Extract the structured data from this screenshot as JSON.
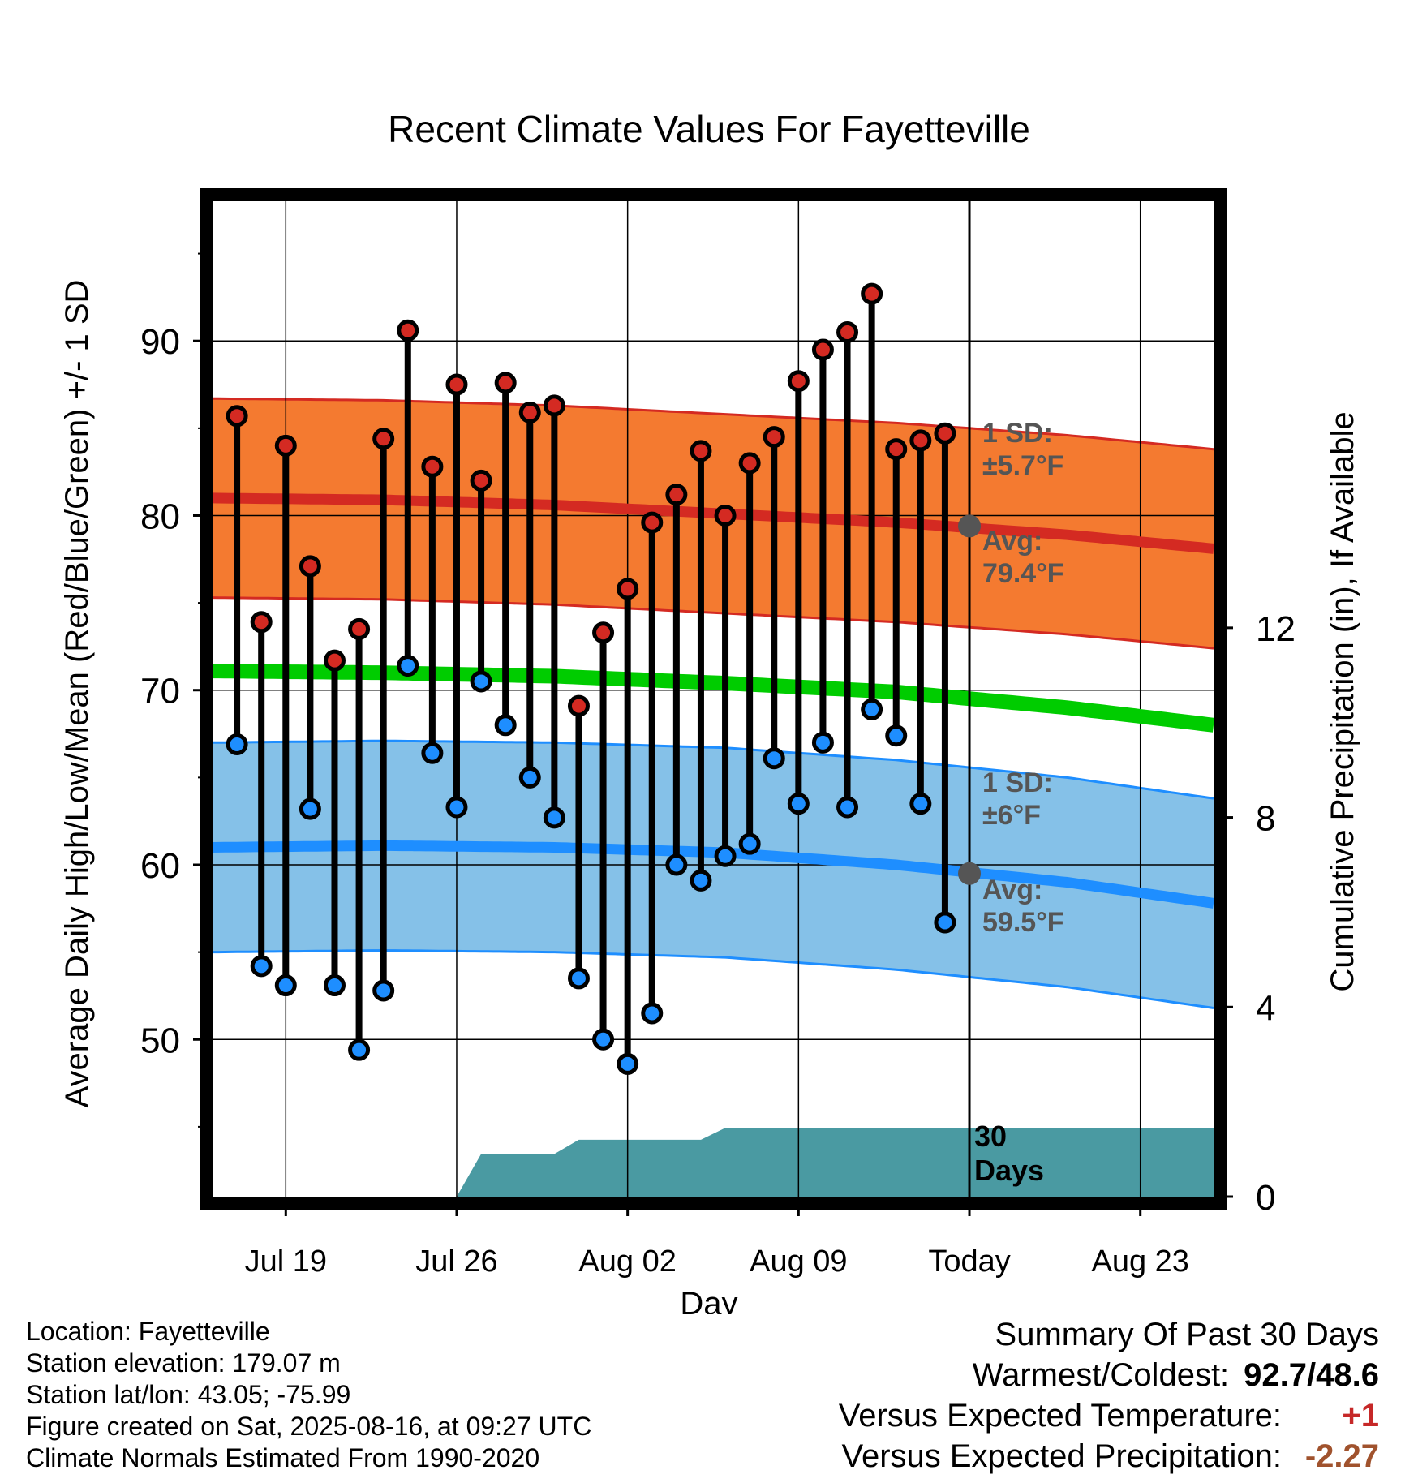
{
  "chart_data": {
    "type": "line",
    "title": "Recent Climate Values For Fayetteville",
    "xlabel": "Day",
    "ylabel": "Average Daily High/Low/Mean (Red/Blue/Green) +/- 1 SD",
    "y2label": "Cumulative Precipitation (in), If Available",
    "x_domain": [
      "2025-07-16",
      "2025-08-26"
    ],
    "ylim": [
      41,
      98
    ],
    "y2lim": [
      0,
      21
    ],
    "grid": true,
    "x_tick_dates": [
      "2025-07-19",
      "2025-07-26",
      "2025-08-02",
      "2025-08-09",
      "2025-08-16",
      "2025-08-23"
    ],
    "x_tick_labels": [
      "Jul 19",
      "Jul 26",
      "Aug 02",
      "Aug 09",
      "Today",
      "Aug 23"
    ],
    "y_ticks": [
      50,
      60,
      70,
      80,
      90
    ],
    "y2_ticks": [
      0,
      4,
      8,
      12
    ],
    "today_date": "2025-08-16",
    "today_label": "30 Days",
    "colors": {
      "high_band": "#f47a30",
      "high_line": "#d42a22",
      "low_band": "#85c1e8",
      "low_line": "#1e8eff",
      "mean_line": "#00cc00",
      "high_marker": "#d42a22",
      "low_marker": "#1e8eff",
      "precip": "#4a9aa2",
      "annotation": "#555555"
    },
    "normal_dates": [
      "2025-07-16",
      "2025-07-23",
      "2025-07-30",
      "2025-08-06",
      "2025-08-13",
      "2025-08-20",
      "2025-08-26"
    ],
    "normal_high": [
      81.0,
      80.9,
      80.6,
      80.1,
      79.6,
      78.9,
      78.1
    ],
    "normal_low": [
      61.0,
      61.1,
      61.0,
      60.7,
      60.0,
      59.0,
      57.8
    ],
    "normal_mean": [
      71.1,
      71.0,
      70.8,
      70.4,
      69.9,
      69.0,
      68.0
    ],
    "sd_high": 5.7,
    "sd_low": 6.0,
    "days": [
      "2025-07-17",
      "2025-07-18",
      "2025-07-19",
      "2025-07-20",
      "2025-07-21",
      "2025-07-22",
      "2025-07-23",
      "2025-07-24",
      "2025-07-25",
      "2025-07-26",
      "2025-07-27",
      "2025-07-28",
      "2025-07-29",
      "2025-07-30",
      "2025-07-31",
      "2025-08-01",
      "2025-08-02",
      "2025-08-03",
      "2025-08-04",
      "2025-08-05",
      "2025-08-06",
      "2025-08-07",
      "2025-08-08",
      "2025-08-09",
      "2025-08-10",
      "2025-08-11",
      "2025-08-12",
      "2025-08-13",
      "2025-08-14",
      "2025-08-15"
    ],
    "daily_high": [
      85.7,
      73.9,
      84.0,
      77.1,
      71.7,
      73.5,
      84.4,
      90.6,
      82.8,
      87.5,
      82.0,
      87.6,
      85.9,
      86.3,
      69.1,
      73.3,
      75.8,
      79.6,
      81.2,
      83.7,
      80.0,
      83.0,
      84.5,
      87.7,
      89.5,
      90.5,
      92.7,
      83.8,
      84.3,
      84.7
    ],
    "daily_low": [
      66.9,
      54.2,
      53.1,
      63.2,
      53.1,
      49.4,
      52.8,
      71.4,
      66.4,
      63.3,
      70.5,
      68.0,
      65.0,
      62.7,
      53.5,
      50.0,
      48.6,
      51.5,
      60.0,
      59.1,
      60.5,
      61.2,
      66.1,
      63.5,
      67.0,
      63.3,
      68.9,
      67.4,
      63.5,
      56.7
    ],
    "precip_cumulative": [
      {
        "date": "2025-07-16",
        "value": 0
      },
      {
        "date": "2025-07-26",
        "value": 0
      },
      {
        "date": "2025-07-27",
        "value": 0.9
      },
      {
        "date": "2025-07-30",
        "value": 0.9
      },
      {
        "date": "2025-07-31",
        "value": 1.2
      },
      {
        "date": "2025-08-05",
        "value": 1.2
      },
      {
        "date": "2025-08-06",
        "value": 1.45
      },
      {
        "date": "2025-08-26",
        "value": 1.45
      }
    ],
    "annotations": {
      "high_sd_label": "1 SD:",
      "high_sd_value": "±5.7°F",
      "high_avg_label": "Avg:",
      "high_avg_value": "79.4°F",
      "low_sd_label": "1 SD:",
      "low_sd_value": "±6°F",
      "low_avg_label": "Avg:",
      "low_avg_value": "59.5°F",
      "today_high_avg": 79.4,
      "today_low_avg": 59.5
    }
  },
  "info": {
    "location": "Location: Fayetteville",
    "elevation": "Station elevation: 179.07 m",
    "latlon": "Station lat/lon: 43.05; -75.99",
    "created": "Figure created on Sat, 2025-08-16, at 09:27 UTC",
    "normals": "Climate Normals Estimated From 1990-2020"
  },
  "summary": {
    "title": "Summary Of Past 30 Days",
    "warm_cold_label": "Warmest/Coldest:",
    "warm_cold_value": "92.7/48.6",
    "temp_label": "Versus Expected Temperature:",
    "temp_value": "+1",
    "precip_label": "Versus Expected Precipitation:",
    "precip_value": "-2.27"
  }
}
